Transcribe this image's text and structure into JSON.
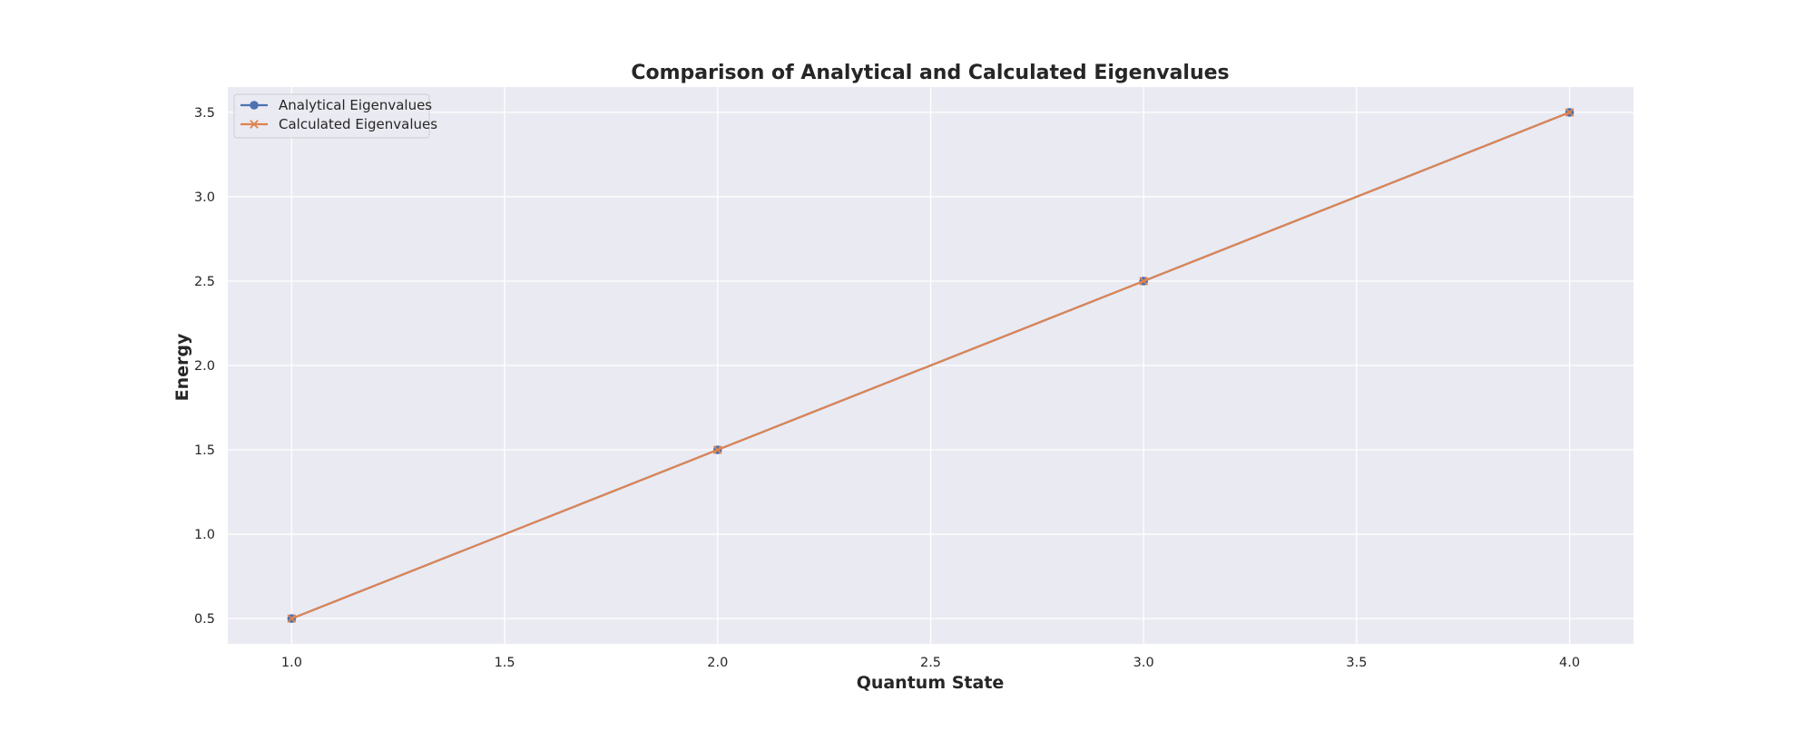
{
  "chart_data": {
    "type": "line",
    "title": "Comparison of Analytical and Calculated Eigenvalues",
    "xlabel": "Quantum State",
    "ylabel": "Energy",
    "x": [
      1,
      2,
      3,
      4
    ],
    "series": [
      {
        "name": "Analytical Eigenvalues",
        "values": [
          0.5,
          1.5,
          2.5,
          3.5
        ],
        "color": "#4c72b0",
        "marker": "circle"
      },
      {
        "name": "Calculated Eigenvalues",
        "values": [
          0.5,
          1.5,
          2.5,
          3.5
        ],
        "color": "#dd8452",
        "marker": "x"
      }
    ],
    "xlim": [
      0.85,
      4.15
    ],
    "ylim": [
      0.35,
      3.65
    ],
    "xticks": [
      "1.0",
      "1.5",
      "2.0",
      "2.5",
      "3.0",
      "3.5",
      "4.0"
    ],
    "yticks": [
      "0.5",
      "1.0",
      "1.5",
      "2.0",
      "2.5",
      "3.0",
      "3.5"
    ],
    "grid": true,
    "legend_position": "top-left",
    "background_color": "#eaeaf2",
    "grid_color": "#ffffff"
  }
}
